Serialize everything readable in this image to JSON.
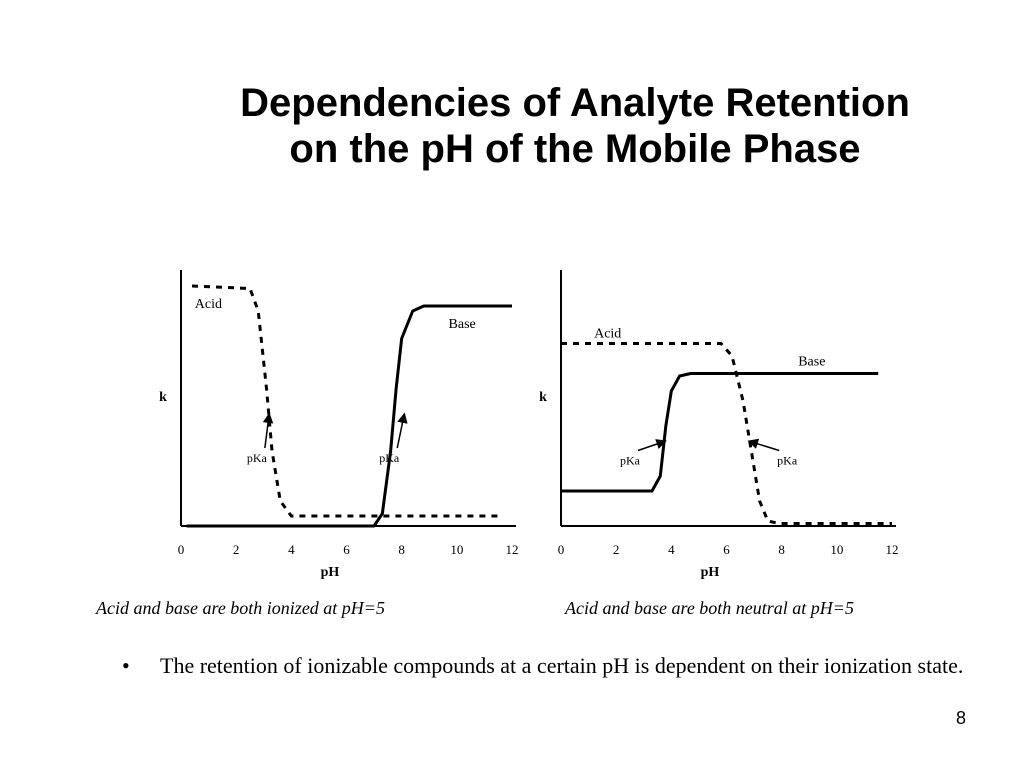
{
  "slide": {
    "title_line1": "Dependencies of Analyte Retention",
    "title_line2": "on the pH of the Mobile Phase",
    "bullet": "The retention of ionizable compounds at a certain pH is dependent on their ionization state.",
    "bullet_marker": "•",
    "page_number": "8"
  },
  "chart_data": [
    {
      "type": "line",
      "xlabel": "pH",
      "ylabel": "k",
      "xlim": [
        0,
        12
      ],
      "xticks": [
        "0",
        "2",
        "4",
        "6",
        "8",
        "10",
        "12"
      ],
      "caption": "Acid and base are both ionized at pH=5",
      "series": [
        {
          "name": "Acid",
          "style": "dashed",
          "x": [
            0.4,
            2.5,
            2.8,
            3.1,
            3.3,
            3.6,
            4.0,
            5.0,
            11.6
          ],
          "y": [
            0.96,
            0.95,
            0.86,
            0.55,
            0.3,
            0.1,
            0.04,
            0.04,
            0.04
          ]
        },
        {
          "name": "Base",
          "style": "solid",
          "x": [
            0.2,
            7.0,
            7.3,
            7.6,
            7.8,
            8.0,
            8.4,
            8.8,
            12.0
          ],
          "y": [
            0.0,
            0.0,
            0.05,
            0.3,
            0.55,
            0.75,
            0.86,
            0.88,
            0.88
          ]
        }
      ],
      "annotations": [
        {
          "text": "pKa",
          "x": 2.75,
          "y": 0.28,
          "arrow_to": [
            3.2,
            0.45
          ]
        },
        {
          "text": "pKa",
          "x": 7.55,
          "y": 0.28,
          "arrow_to": [
            8.1,
            0.45
          ]
        }
      ]
    },
    {
      "type": "line",
      "xlabel": "pH",
      "ylabel": "k",
      "xlim": [
        0,
        12
      ],
      "xticks": [
        "0",
        "2",
        "4",
        "6",
        "8",
        "10",
        "12"
      ],
      "caption": "Acid and base are both neutral at pH=5",
      "series": [
        {
          "name": "Acid",
          "style": "dashed",
          "x": [
            0.0,
            5.8,
            6.2,
            6.6,
            6.9,
            7.2,
            7.5,
            7.9,
            12.0
          ],
          "y": [
            0.73,
            0.73,
            0.68,
            0.5,
            0.3,
            0.1,
            0.02,
            0.01,
            0.01
          ]
        },
        {
          "name": "Base",
          "style": "solid",
          "x": [
            0.0,
            3.3,
            3.6,
            3.8,
            4.0,
            4.3,
            4.7,
            11.5
          ],
          "y": [
            0.14,
            0.14,
            0.2,
            0.4,
            0.54,
            0.6,
            0.61,
            0.61
          ]
        }
      ],
      "annotations": [
        {
          "text": "pKa",
          "x": 2.5,
          "y": 0.27,
          "arrow_to": [
            3.8,
            0.34
          ]
        },
        {
          "text": "pKa",
          "x": 8.2,
          "y": 0.27,
          "arrow_to": [
            6.8,
            0.34
          ]
        }
      ]
    }
  ]
}
